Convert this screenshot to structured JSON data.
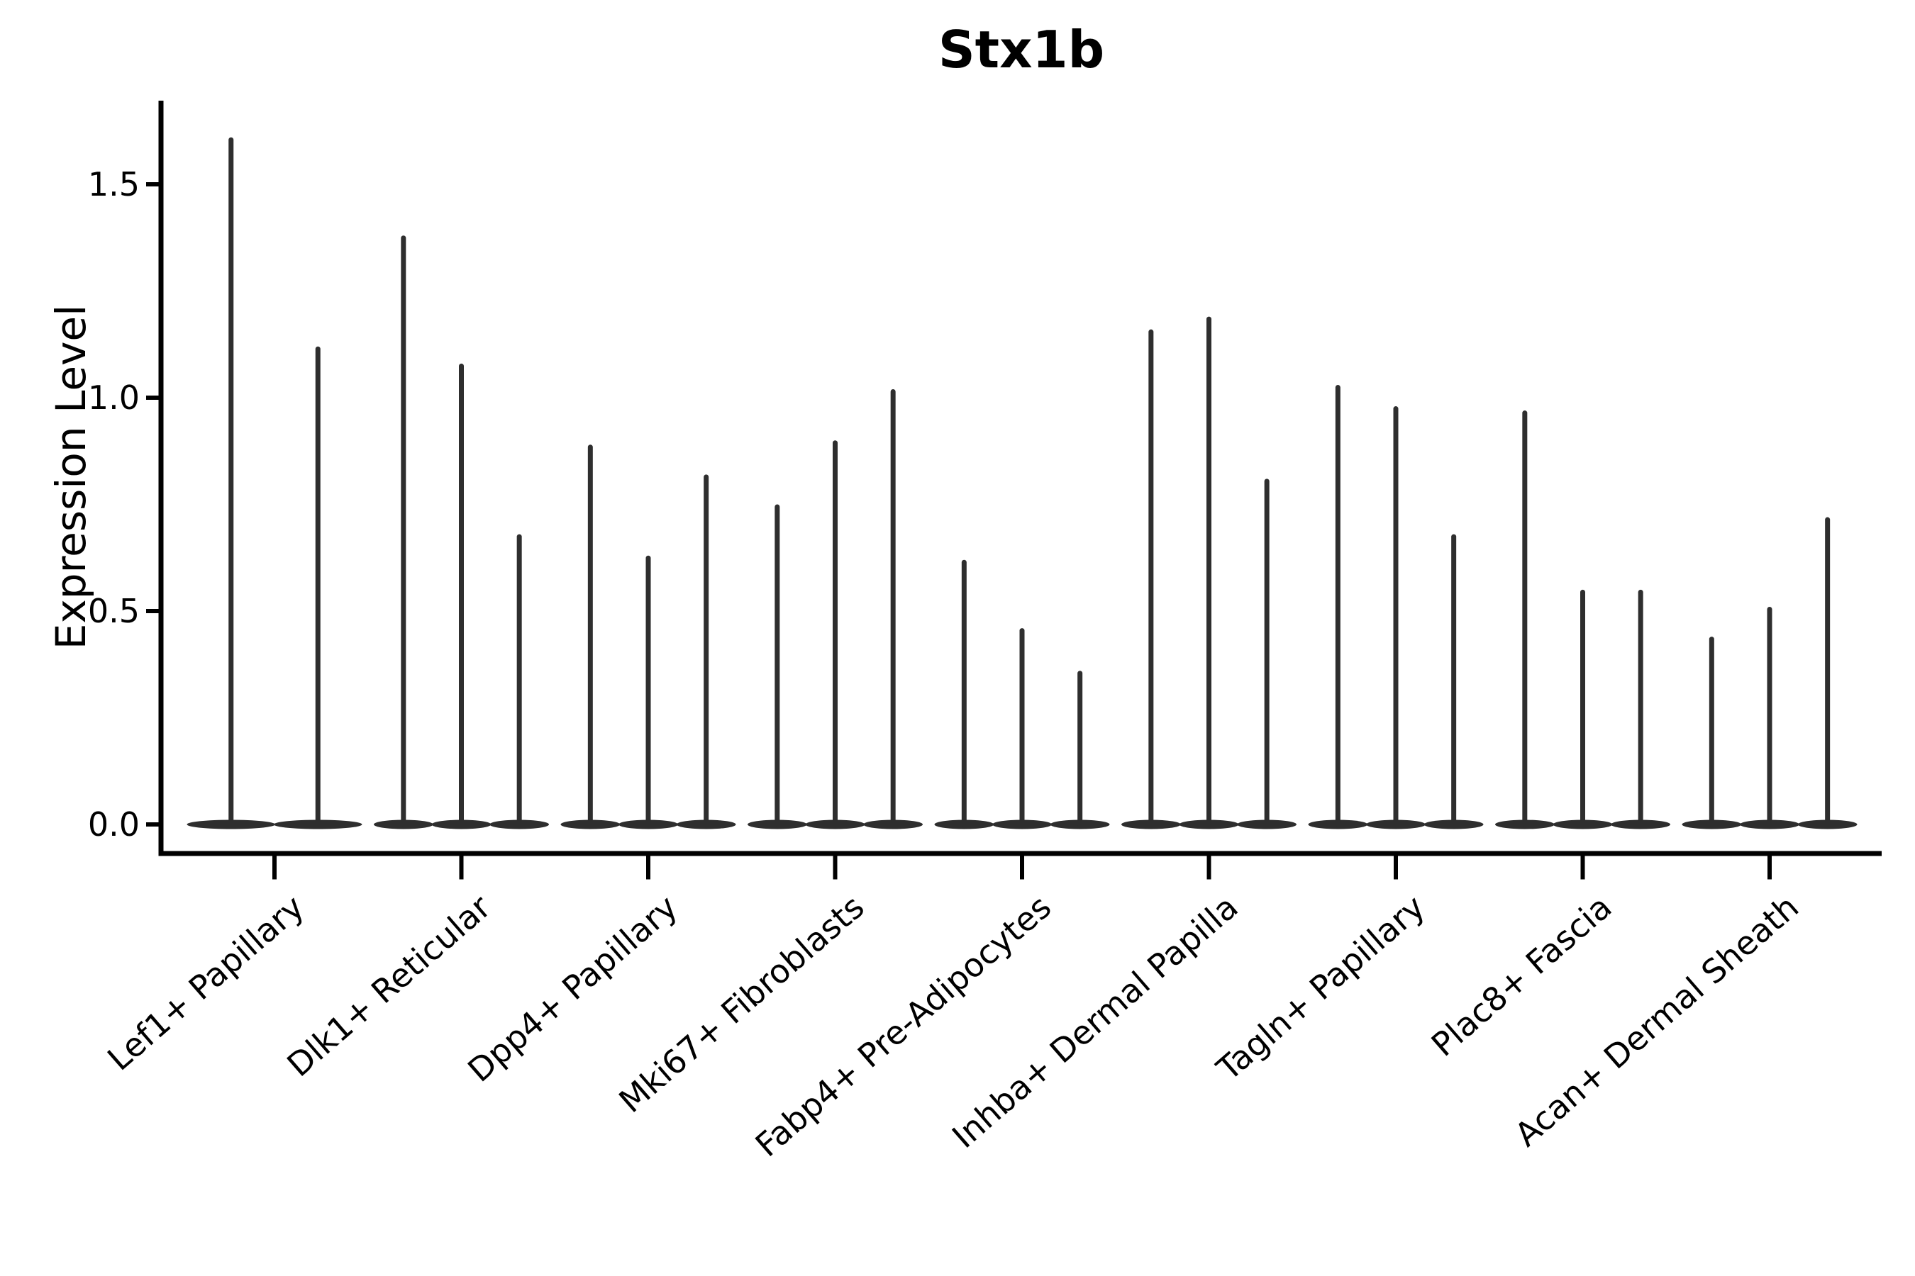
{
  "chart_data": {
    "type": "violin",
    "title": "Stx1b",
    "ylabel": "Expression Level",
    "xlabel": "",
    "ylim": [
      -0.07,
      1.7
    ],
    "grid": false,
    "legend": "none",
    "y_ticks": [
      {
        "value": 0.0,
        "label": "0.0"
      },
      {
        "value": 0.5,
        "label": "0.5"
      },
      {
        "value": 1.0,
        "label": "1.0"
      },
      {
        "value": 1.5,
        "label": "1.5"
      }
    ],
    "categories": [
      "Lef1+ Papillary",
      "Dlk1+ Reticular",
      "Dpp4+ Papillary",
      "Mki67+ Fibroblasts",
      "Fabp4+ Pre-Adipocytes",
      "Inhba+ Dermal Papilla",
      "Tagln+ Papillary",
      "Plac8+ Fascia",
      "Acan+ Dermal Sheath"
    ],
    "groups": [
      {
        "category": "Lef1+ Papillary",
        "violin_peaks": [
          1.61,
          1.12
        ]
      },
      {
        "category": "Dlk1+ Reticular",
        "violin_peaks": [
          1.38,
          1.08,
          0.68
        ]
      },
      {
        "category": "Dpp4+ Papillary",
        "violin_peaks": [
          0.89,
          0.63,
          0.82
        ]
      },
      {
        "category": "Mki67+ Fibroblasts",
        "violin_peaks": [
          0.75,
          0.9,
          1.02
        ]
      },
      {
        "category": "Fabp4+ Pre-Adipocytes",
        "violin_peaks": [
          0.62,
          0.46,
          0.36
        ]
      },
      {
        "category": "Inhba+ Dermal Papilla",
        "violin_peaks": [
          1.16,
          1.19,
          0.81
        ]
      },
      {
        "category": "Tagln+ Papillary",
        "violin_peaks": [
          1.03,
          0.98,
          0.68
        ]
      },
      {
        "category": "Plac8+ Fascia",
        "violin_peaks": [
          0.97,
          0.55,
          0.55
        ]
      },
      {
        "category": "Acan+ Dermal Sheath",
        "violin_peaks": [
          0.44,
          0.51,
          0.72
        ]
      }
    ]
  },
  "style": {
    "violin_color": "#2e2e2e",
    "axis_color": "#000000",
    "text_color": "#000000",
    "background": "#ffffff"
  }
}
